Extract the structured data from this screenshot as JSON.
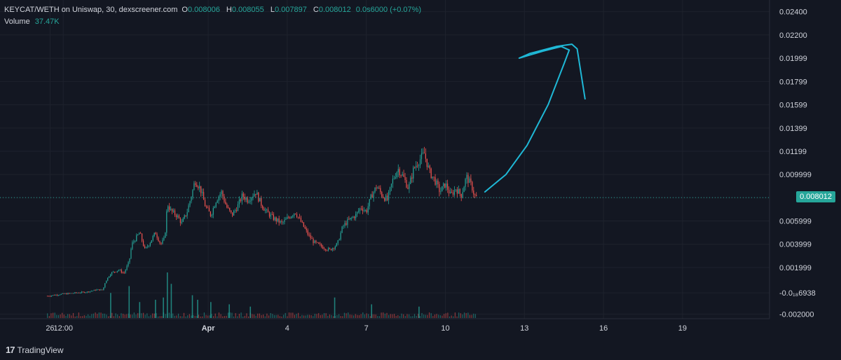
{
  "legend": {
    "symbol": "KEYCAT/WETH on Uniswap, 30, dexscreener.com",
    "o_label": "O",
    "o_value": "0.008006",
    "h_label": "H",
    "h_value": "0.008055",
    "l_label": "L",
    "l_value": "0.007897",
    "c_label": "C",
    "c_value": "0.008012",
    "change": "0.0s6000 (+0.07%)",
    "volume_label": "Volume",
    "volume_value": "37.47K"
  },
  "last_price_label": "0.008012",
  "branding": "TradingView",
  "colors": {
    "background": "#131722",
    "up": "#26a69a",
    "down": "#ef5350",
    "drawing": "#1fb8d6",
    "grid": "#1e222d"
  },
  "chart_data": {
    "type": "candlestick",
    "ylim": [
      -0.0024,
      0.025
    ],
    "y_ticks": [
      "0.02400",
      "0.02200",
      "0.01999",
      "0.01799",
      "0.01599",
      "0.01399",
      "0.01199",
      "0.009999",
      "0.008012",
      "0.005999",
      "0.003999",
      "0.001999",
      "-0.0₁₈6938",
      "-0.002000"
    ],
    "y_tick_values": [
      0.024,
      0.022,
      0.01999,
      0.01799,
      0.01599,
      0.01399,
      0.01199,
      0.009999,
      0.008012,
      0.005999,
      0.003999,
      0.001999,
      -0.000176938,
      -0.002
    ],
    "x_ticks": [
      "26",
      "12:00",
      "Apr",
      "4",
      "7",
      "10",
      "13",
      "16",
      "19"
    ],
    "x_tick_days": [
      0,
      0.5,
      6,
      9,
      12,
      15,
      18,
      21,
      24
    ],
    "x_tick_bold": [
      false,
      false,
      true,
      false,
      false,
      false,
      false,
      false,
      false
    ],
    "xlim_days": [
      -1.9,
      27.3
    ],
    "last_price": 0.008012,
    "price_path": [
      [
        -0.1,
        -0.00045
      ],
      [
        0.4,
        -0.0003
      ],
      [
        0.9,
        -0.0002
      ],
      [
        1.4,
        -0.0001
      ],
      [
        1.8,
        0.0001
      ],
      [
        2.0,
        5e-05
      ],
      [
        2.1,
        0.0008
      ],
      [
        2.3,
        0.0015
      ],
      [
        2.6,
        0.0018
      ],
      [
        2.8,
        0.0015
      ],
      [
        3.0,
        0.0025
      ],
      [
        3.1,
        0.004
      ],
      [
        3.4,
        0.005
      ],
      [
        3.6,
        0.0035
      ],
      [
        3.8,
        0.0042
      ],
      [
        4.0,
        0.005
      ],
      [
        4.2,
        0.004
      ],
      [
        4.35,
        0.0045
      ],
      [
        4.45,
        0.0075
      ],
      [
        4.6,
        0.0068
      ],
      [
        4.8,
        0.0065
      ],
      [
        5.0,
        0.0058
      ],
      [
        5.2,
        0.0068
      ],
      [
        5.4,
        0.0085
      ],
      [
        5.5,
        0.0095
      ],
      [
        5.7,
        0.0088
      ],
      [
        5.9,
        0.0072
      ],
      [
        6.1,
        0.0065
      ],
      [
        6.3,
        0.0078
      ],
      [
        6.5,
        0.0085
      ],
      [
        6.7,
        0.0072
      ],
      [
        6.9,
        0.0065
      ],
      [
        7.1,
        0.0072
      ],
      [
        7.3,
        0.0082
      ],
      [
        7.5,
        0.0078
      ],
      [
        7.8,
        0.0085
      ],
      [
        8.0,
        0.0075
      ],
      [
        8.2,
        0.0068
      ],
      [
        8.5,
        0.0062
      ],
      [
        8.8,
        0.0058
      ],
      [
        9.1,
        0.0064
      ],
      [
        9.3,
        0.0068
      ],
      [
        9.5,
        0.006
      ],
      [
        9.8,
        0.0048
      ],
      [
        10.0,
        0.0042
      ],
      [
        10.3,
        0.0038
      ],
      [
        10.6,
        0.0035
      ],
      [
        10.9,
        0.004
      ],
      [
        11.1,
        0.0055
      ],
      [
        11.3,
        0.006
      ],
      [
        11.6,
        0.0065
      ],
      [
        11.8,
        0.0072
      ],
      [
        12.0,
        0.0068
      ],
      [
        12.2,
        0.0082
      ],
      [
        12.4,
        0.009
      ],
      [
        12.6,
        0.0082
      ],
      [
        12.8,
        0.0078
      ],
      [
        13.0,
        0.0095
      ],
      [
        13.2,
        0.0105
      ],
      [
        13.4,
        0.0098
      ],
      [
        13.6,
        0.0088
      ],
      [
        13.8,
        0.0105
      ],
      [
        14.0,
        0.0112
      ],
      [
        14.2,
        0.0118
      ],
      [
        14.4,
        0.0102
      ],
      [
        14.6,
        0.0095
      ],
      [
        14.8,
        0.0085
      ],
      [
        15.0,
        0.0092
      ],
      [
        15.2,
        0.0082
      ],
      [
        15.4,
        0.0088
      ],
      [
        15.6,
        0.0082
      ],
      [
        15.8,
        0.0098
      ],
      [
        16.0,
        0.009
      ],
      [
        16.1,
        0.0082
      ],
      [
        16.2,
        0.008
      ]
    ],
    "volume_spikes": [
      [
        2.3,
        0.55
      ],
      [
        3.0,
        0.7
      ],
      [
        3.4,
        0.35
      ],
      [
        4.0,
        0.4
      ],
      [
        4.3,
        0.45
      ],
      [
        4.45,
        1.0
      ],
      [
        4.6,
        0.75
      ],
      [
        5.4,
        0.5
      ],
      [
        5.6,
        0.4
      ],
      [
        6.1,
        0.35
      ],
      [
        6.8,
        0.3
      ],
      [
        7.6,
        0.25
      ],
      [
        10.8,
        0.45
      ],
      [
        12.2,
        0.3
      ],
      [
        14.0,
        0.25
      ]
    ],
    "drawing_path": [
      [
        16.5,
        0.0085
      ],
      [
        17.3,
        0.01
      ],
      [
        18.1,
        0.0125
      ],
      [
        18.9,
        0.016
      ],
      [
        19.5,
        0.0195
      ],
      [
        19.7,
        0.0207
      ],
      [
        19.4,
        0.021
      ],
      [
        18.7,
        0.0206
      ],
      [
        17.8,
        0.02
      ],
      [
        18.2,
        0.0204
      ],
      [
        19.2,
        0.021
      ],
      [
        19.8,
        0.0212
      ],
      [
        20.0,
        0.0208
      ],
      [
        20.3,
        0.0165
      ]
    ]
  }
}
